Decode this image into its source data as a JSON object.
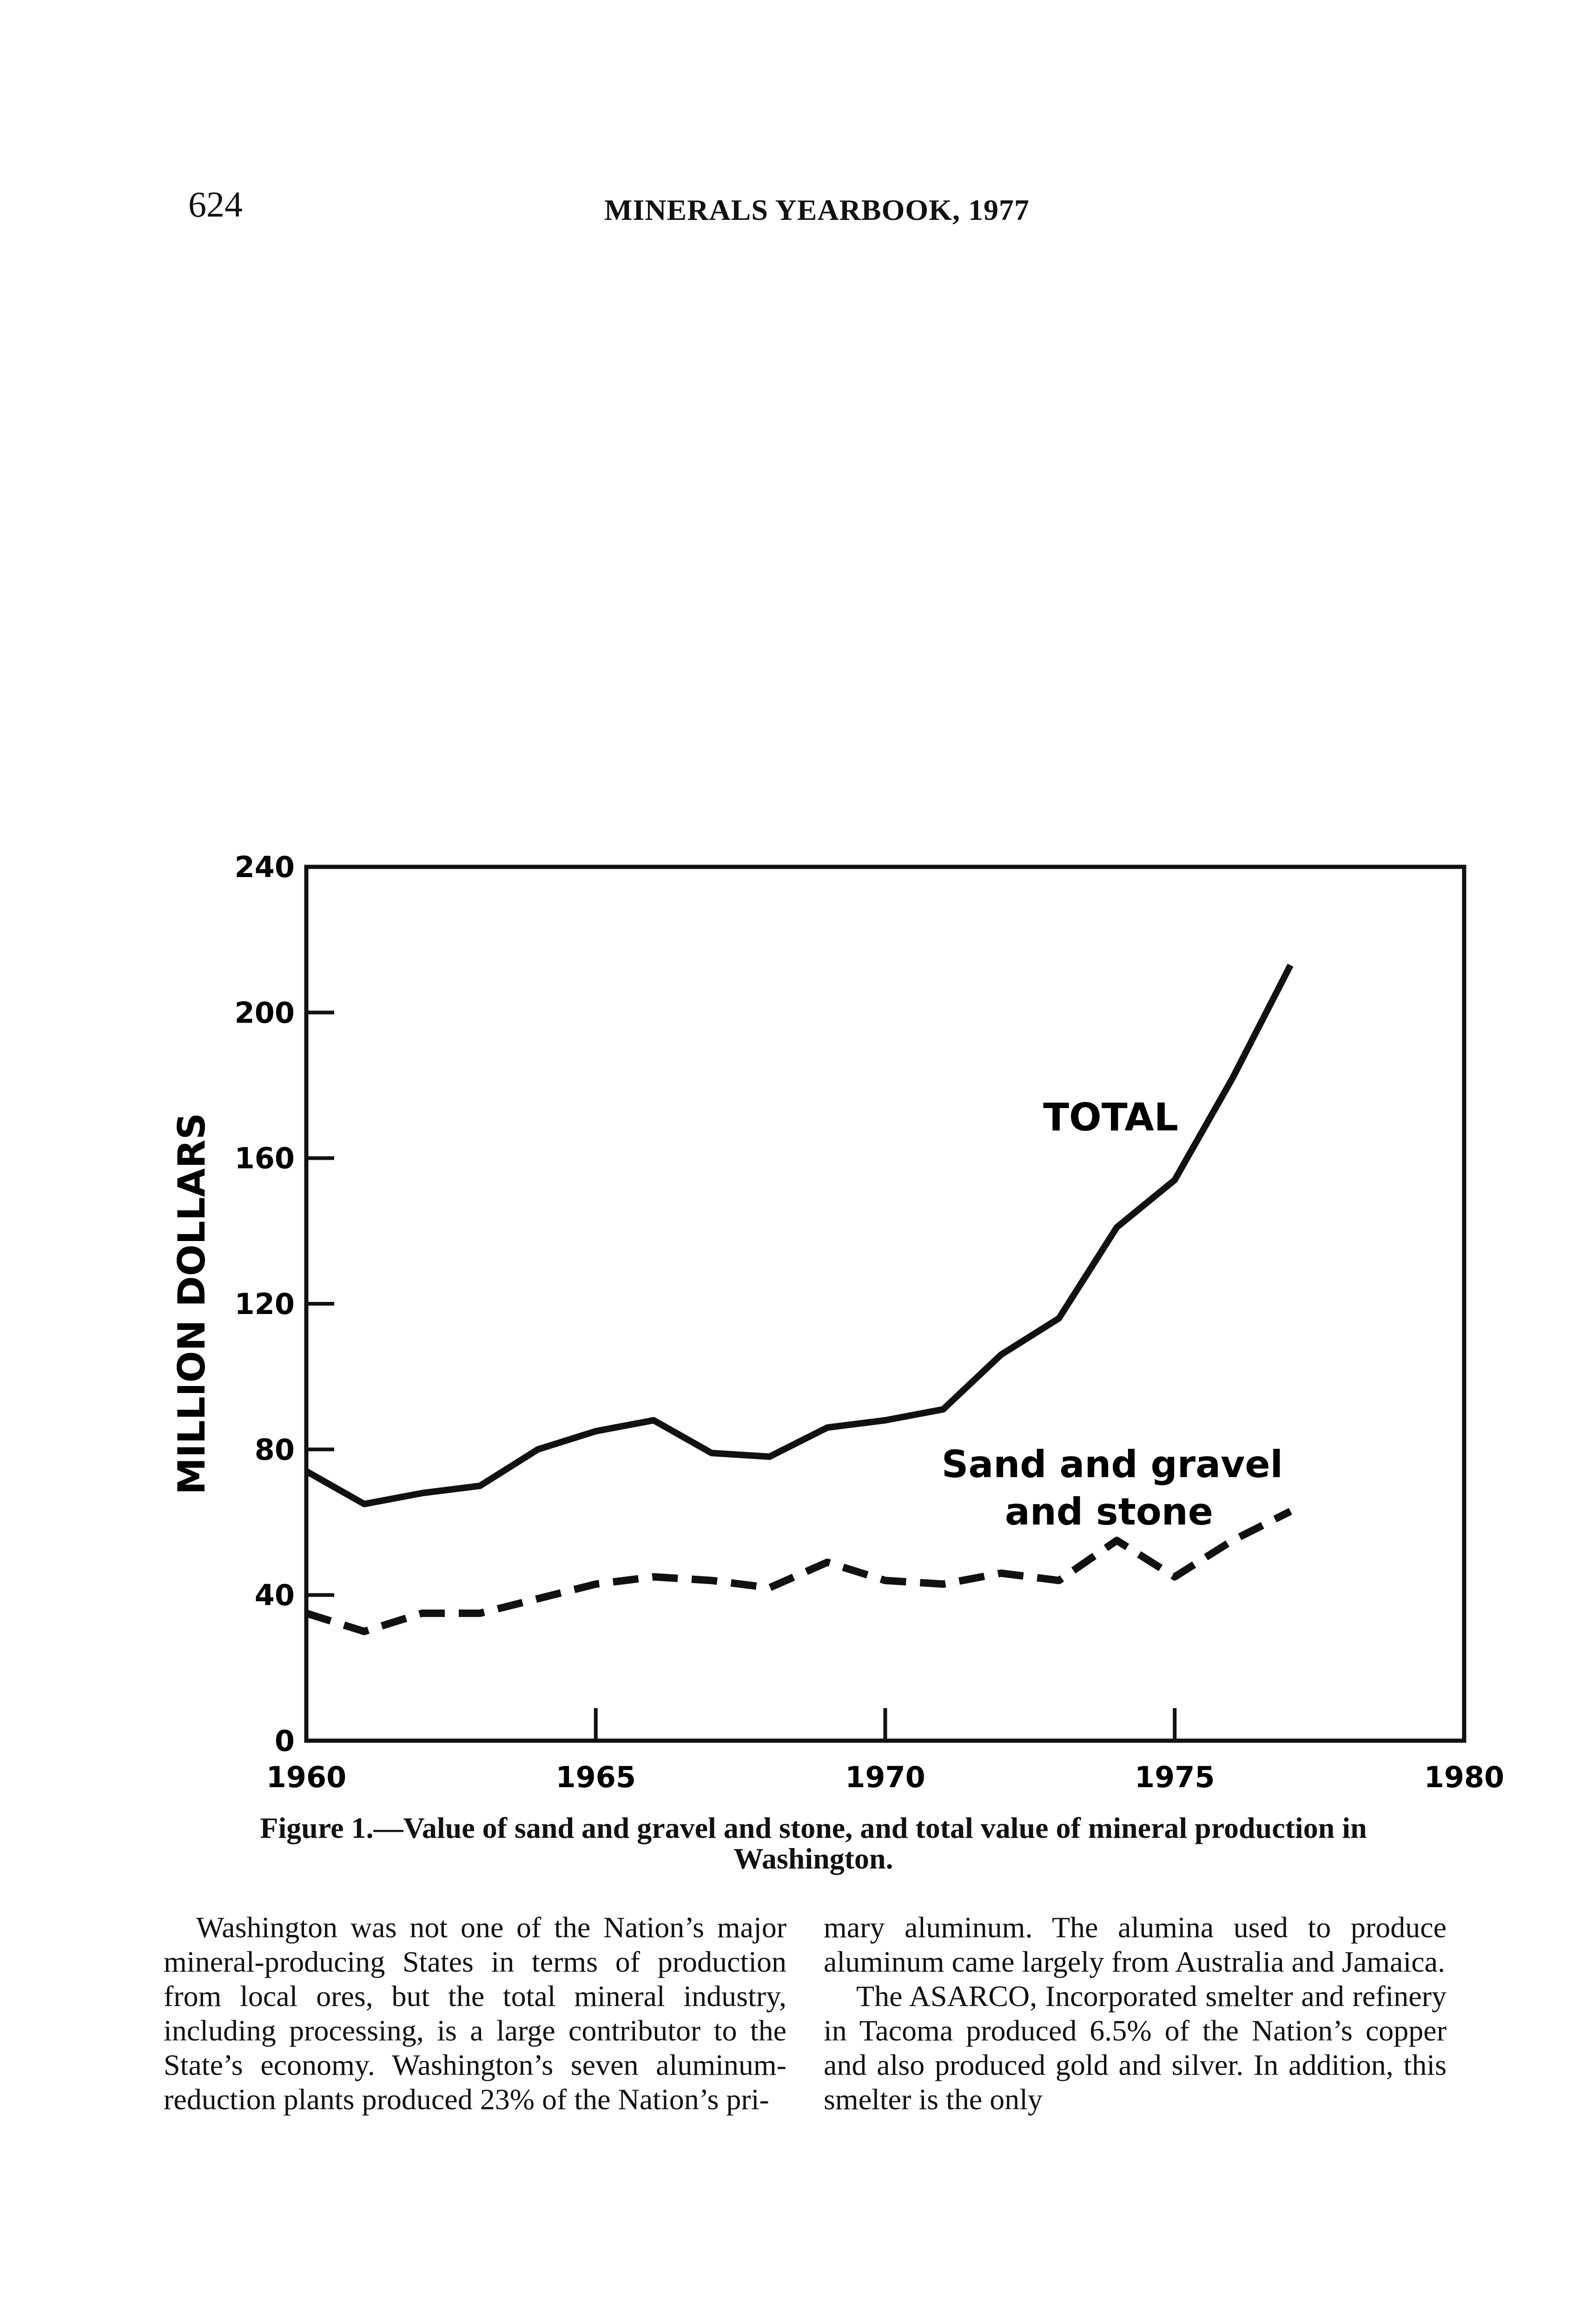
{
  "header": {
    "page_number": "624",
    "running_title": "MINERALS YEARBOOK, 1977"
  },
  "chart_data": {
    "type": "line",
    "title": "",
    "xlabel": "",
    "ylabel": "MILLION DOLLARS",
    "xlim": [
      1960,
      1980
    ],
    "ylim": [
      0,
      240
    ],
    "x_ticks": [
      "1960",
      "1965",
      "1970",
      "1975",
      "1980"
    ],
    "y_ticks": [
      "0",
      "40",
      "80",
      "120",
      "160",
      "200",
      "240"
    ],
    "grid": false,
    "x": [
      1960,
      1961,
      1962,
      1963,
      1964,
      1965,
      1966,
      1967,
      1968,
      1969,
      1970,
      1971,
      1972,
      1973,
      1974,
      1975,
      1976,
      1977
    ],
    "series": [
      {
        "name": "TOTAL",
        "style": "solid",
        "color": "#111111",
        "values": [
          74,
          65,
          68,
          70,
          80,
          85,
          88,
          79,
          78,
          86,
          88,
          91,
          106,
          116,
          141,
          154,
          182,
          213
        ]
      },
      {
        "name": "Sand and gravel and stone",
        "label_lines": [
          "Sand and gravel",
          "and stone"
        ],
        "style": "dashed",
        "color": "#111111",
        "values": [
          35,
          30,
          35,
          35,
          39,
          43,
          45,
          44,
          42,
          49,
          44,
          43,
          46,
          44,
          55,
          45,
          55,
          63
        ]
      }
    ]
  },
  "caption": {
    "line1": "Figure 1.—Value of sand and gravel and stone, and total value of mineral production in",
    "line2": "Washington."
  },
  "body": {
    "left": "Washington was not one of the Nation’s major mineral-producing States in terms of production from local ores, but the total mineral industry, including processing, is a large contributor to the State’s economy. Washington’s seven aluminum-reduction plants produced 23% of the Nation’s pri-",
    "right_p1": "mary aluminum. The alumina used to produce aluminum came largely from Australia and Jamaica.",
    "right_p2": "The ASARCO, Incorporated smelter and refinery in Tacoma produced 6.5% of the Nation’s copper and also produced gold and silver. In addition, this smelter is the only"
  }
}
